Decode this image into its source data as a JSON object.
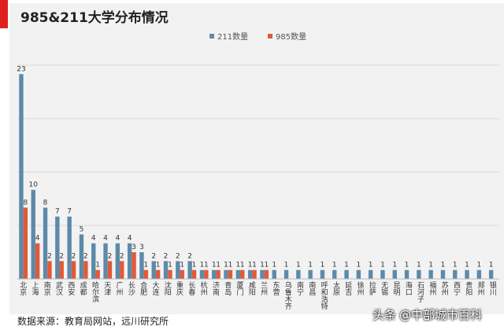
{
  "title": "985&211大学分布情况",
  "source": "数据来源：教育局网站，远川研究所",
  "watermark": {
    "prefix": "头条",
    "handle": "@中部城市百科"
  },
  "colors": {
    "s211": "#5d8aa8",
    "s985": "#e05a3a",
    "marker": "#e02020",
    "panel": "#f2f2f2"
  },
  "chart_data": {
    "type": "bar",
    "title": "985&211大学分布情况",
    "xlabel": "",
    "ylabel": "",
    "ylim": [
      0,
      24
    ],
    "grid": true,
    "legend_position": "top-center",
    "categories": [
      "北京",
      "上海",
      "南京",
      "武汉",
      "西安",
      "成都",
      "哈尔滨",
      "天津",
      "广州",
      "长沙",
      "合肥",
      "大连",
      "沈阳",
      "重庆",
      "长春",
      "杭州",
      "济南",
      "青岛",
      "厦门",
      "咸阳",
      "兰州",
      "东营",
      "乌鲁木齐",
      "南宁",
      "南昌",
      "呼和浩特",
      "太原",
      "延吉",
      "徐州",
      "拉萨",
      "无锡",
      "昆明",
      "海口",
      "石河子",
      "福州",
      "苏州",
      "西宁",
      "贵阳",
      "郑州",
      "银川"
    ],
    "series": [
      {
        "name": "211数量",
        "values": [
          23,
          10,
          8,
          7,
          7,
          5,
          4,
          4,
          4,
          4,
          3,
          2,
          2,
          2,
          2,
          1,
          1,
          1,
          1,
          1,
          1,
          1,
          1,
          1,
          1,
          1,
          1,
          1,
          1,
          1,
          1,
          1,
          1,
          1,
          1,
          1,
          1,
          1,
          1,
          1
        ]
      },
      {
        "name": "985数量",
        "values": [
          8,
          4,
          2,
          2,
          2,
          2,
          1,
          2,
          2,
          3,
          1,
          1,
          1,
          1,
          1,
          1,
          1,
          1,
          1,
          1,
          1,
          null,
          null,
          null,
          null,
          null,
          null,
          null,
          null,
          null,
          null,
          null,
          null,
          null,
          null,
          null,
          null,
          null,
          null,
          null
        ]
      }
    ]
  }
}
